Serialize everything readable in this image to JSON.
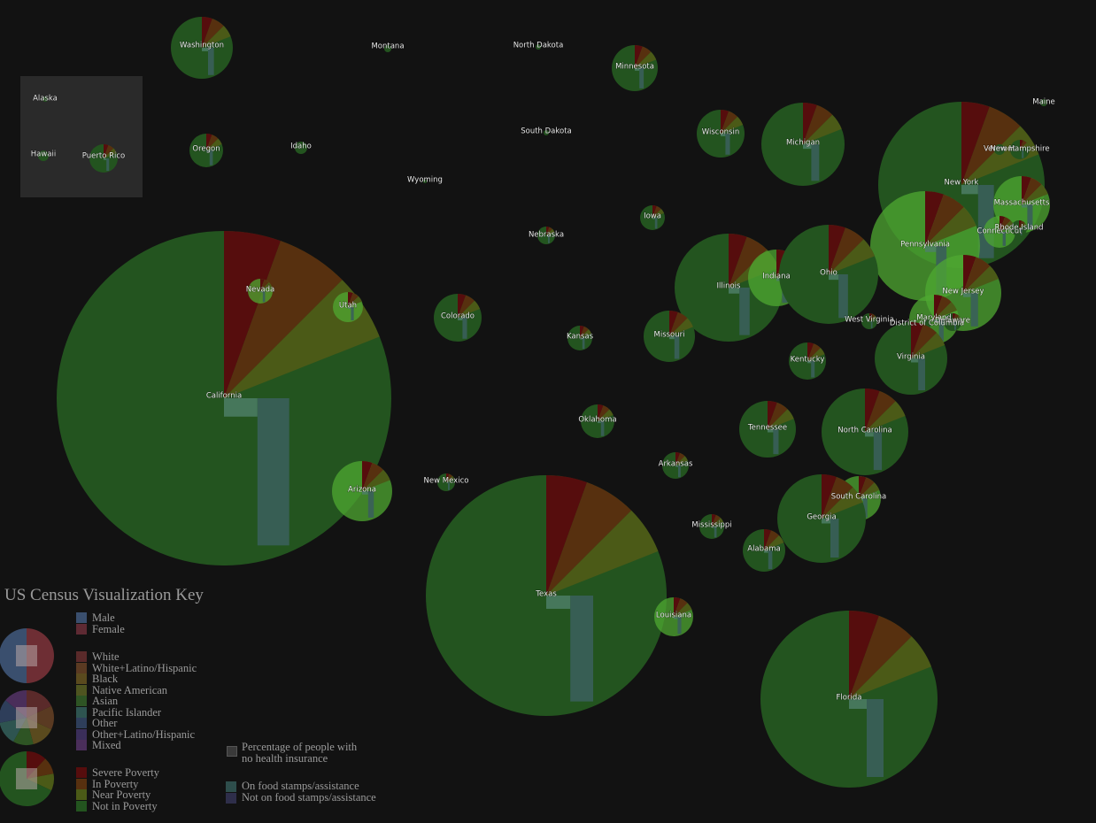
{
  "colors": {
    "background": "#121212",
    "inset_panel": "#2a2a2a",
    "not_in_poverty": "#23541f",
    "near_poverty": "#4b5a17",
    "in_poverty": "#57300f",
    "severe_poverty": "#560d0d",
    "food_stamps_bar": "#3a5f5a",
    "uninsured_square": "#4f7f6a",
    "highlight": "#4fa832"
  },
  "states": [
    {
      "name": "Washington",
      "label": "Washington"
    },
    {
      "name": "Montana",
      "label": "Montana"
    },
    {
      "name": "North Dakota",
      "label": "North Dakota"
    },
    {
      "name": "Minnesota",
      "label": "Minnesota"
    },
    {
      "name": "Maine",
      "label": "Maine"
    },
    {
      "name": "Alaska",
      "label": "Alaska"
    },
    {
      "name": "Hawaii",
      "label": "Hawaii"
    },
    {
      "name": "Puerto Rico",
      "label": "Puerto Rico"
    },
    {
      "name": "Oregon",
      "label": "Oregon"
    },
    {
      "name": "Idaho",
      "label": "Idaho"
    },
    {
      "name": "South Dakota",
      "label": "South Dakota"
    },
    {
      "name": "Wisconsin",
      "label": "Wisconsin"
    },
    {
      "name": "Michigan",
      "label": "Michigan"
    },
    {
      "name": "Wyoming",
      "label": "Wyoming"
    },
    {
      "name": "New York",
      "label": "New York"
    },
    {
      "name": "Vermont",
      "label": "Vermont"
    },
    {
      "name": "New Hampshire",
      "label": "New Hampshire"
    },
    {
      "name": "Massachusetts",
      "label": "Massachusetts"
    },
    {
      "name": "Iowa",
      "label": "Iowa"
    },
    {
      "name": "Connecticut",
      "label": "Connecticut"
    },
    {
      "name": "Rhode Island",
      "label": "Rhode Island"
    },
    {
      "name": "Nebraska",
      "label": "Nebraska"
    },
    {
      "name": "Pennsylvania",
      "label": "Pennsylvania"
    },
    {
      "name": "California",
      "label": "California"
    },
    {
      "name": "Nevada",
      "label": "Nevada"
    },
    {
      "name": "Utah",
      "label": "Utah"
    },
    {
      "name": "Colorado",
      "label": "Colorado"
    },
    {
      "name": "Illinois",
      "label": "Illinois"
    },
    {
      "name": "Indiana",
      "label": "Indiana"
    },
    {
      "name": "Ohio",
      "label": "Ohio"
    },
    {
      "name": "New Jersey",
      "label": "New Jersey"
    },
    {
      "name": "Kansas",
      "label": "Kansas"
    },
    {
      "name": "Missouri",
      "label": "Missouri"
    },
    {
      "name": "West Virginia",
      "label": "West Virginia"
    },
    {
      "name": "Maryland",
      "label": "Maryland"
    },
    {
      "name": "Delaware",
      "label": "Delaware"
    },
    {
      "name": "District of Columbia",
      "label": "District of Columbia"
    },
    {
      "name": "Kentucky",
      "label": "Kentucky"
    },
    {
      "name": "Virginia",
      "label": "Virginia"
    },
    {
      "name": "Oklahoma",
      "label": "Oklahoma"
    },
    {
      "name": "Tennessee",
      "label": "Tennessee"
    },
    {
      "name": "North Carolina",
      "label": "North Carolina"
    },
    {
      "name": "Arkansas",
      "label": "Arkansas"
    },
    {
      "name": "Arizona",
      "label": "Arizona"
    },
    {
      "name": "New Mexico",
      "label": "New Mexico"
    },
    {
      "name": "South Carolina",
      "label": "South Carolina"
    },
    {
      "name": "Georgia",
      "label": "Georgia"
    },
    {
      "name": "Mississippi",
      "label": "Mississippi"
    },
    {
      "name": "Alabama",
      "label": "Alabama"
    },
    {
      "name": "Texas",
      "label": "Texas"
    },
    {
      "name": "Louisiana",
      "label": "Louisiana"
    },
    {
      "name": "Florida",
      "label": "Florida"
    }
  ],
  "key": {
    "title": "US Census Visualization Key",
    "sex": [
      {
        "label": "Male",
        "color": "#3a4f6e"
      },
      {
        "label": "Female",
        "color": "#5e2a33"
      }
    ],
    "race": [
      {
        "label": "White",
        "color": "#5a2a2a"
      },
      {
        "label": "White+Latino/Hispanic",
        "color": "#5a3a22"
      },
      {
        "label": "Black",
        "color": "#5a4a1e"
      },
      {
        "label": "Native American",
        "color": "#4e5420"
      },
      {
        "label": "Asian",
        "color": "#2e5424"
      },
      {
        "label": "Pacific Islander",
        "color": "#2e5450"
      },
      {
        "label": "Other",
        "color": "#2e3e5a"
      },
      {
        "label": "Other+Latino/Hispanic",
        "color": "#3a2e5a"
      },
      {
        "label": "Mixed",
        "color": "#4a2e5a"
      }
    ],
    "poverty": [
      {
        "label": "Severe Poverty",
        "color": "#560d0d"
      },
      {
        "label": "In Poverty",
        "color": "#57300f"
      },
      {
        "label": "Near Poverty",
        "color": "#4b5a17"
      },
      {
        "label": "Not in Poverty",
        "color": "#23541f"
      }
    ],
    "insurance_note": "Percentage of people with\nno health insurance",
    "assistance": [
      {
        "label": "On food stamps/assistance",
        "color": "#2e4e4c"
      },
      {
        "label": "Not on food stamps/assistance",
        "color": "#2e2e4a"
      }
    ]
  }
}
